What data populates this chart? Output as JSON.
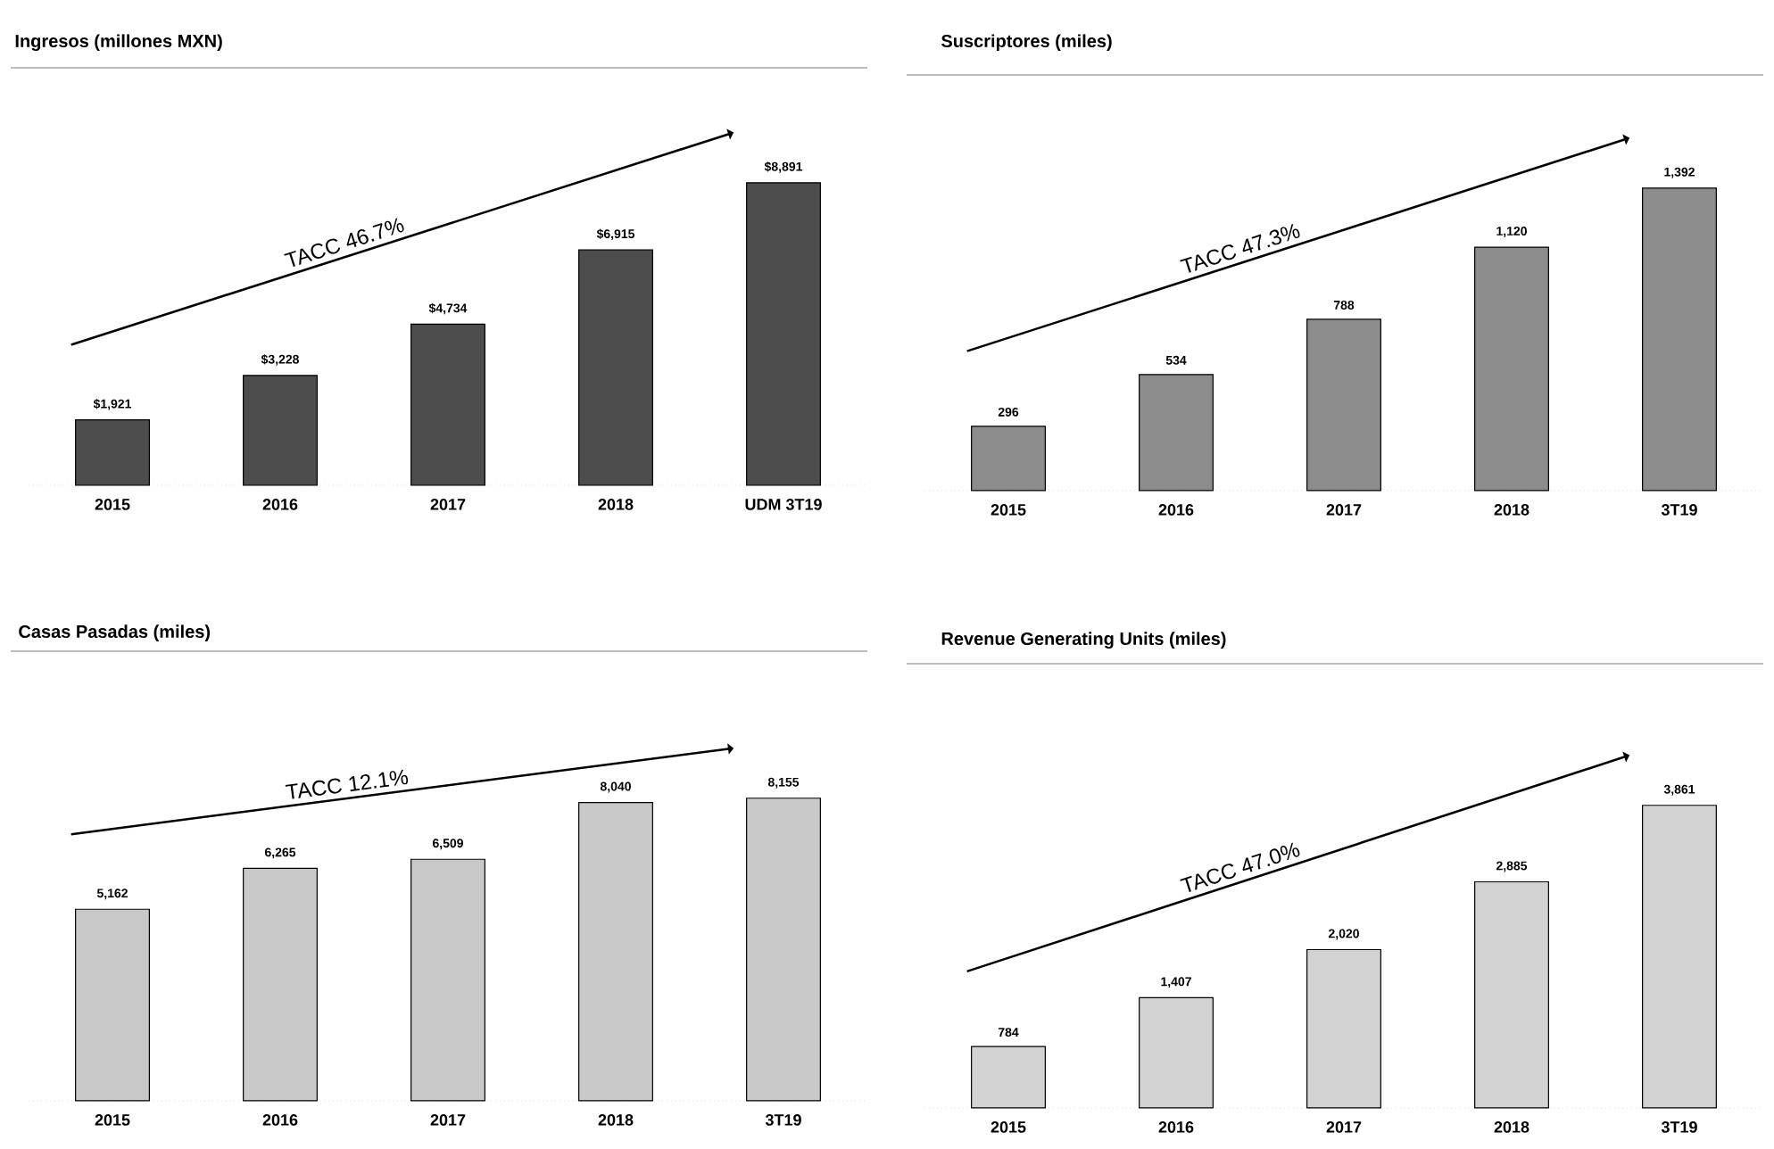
{
  "chart_data": [
    {
      "type": "bar",
      "title": "**Ingresos** (millones MXN)",
      "categories": [
        "2015",
        "2016",
        "2017",
        "2018",
        "UDM 3T19"
      ],
      "values": [
        1921,
        3228,
        4734,
        6915,
        8891
      ],
      "value_labels": [
        "$1,921",
        "$3,228",
        "$4,734",
        "$6,915",
        "$8,891"
      ],
      "color": "#4d4d4d",
      "annotations": [
        "TACC 46.7%"
      ]
    },
    {
      "type": "bar",
      "title": "**Suscriptores** (miles)",
      "categories": [
        "2015",
        "2016",
        "2017",
        "2018",
        "3T19"
      ],
      "values": [
        296,
        534,
        788,
        1120,
        1392
      ],
      "value_labels": [
        "296",
        "534",
        "788",
        "1,120",
        "1,392"
      ],
      "color": "#8c8c8c",
      "annotations": [
        "TACC 47.3%"
      ]
    },
    {
      "type": "bar",
      "title": "**Casas Pasadas** (miles)",
      "categories": [
        "2015",
        "2016",
        "2017",
        "2018",
        "3T19"
      ],
      "values": [
        5162,
        6265,
        6509,
        8040,
        8155
      ],
      "value_labels": [
        "5,162",
        "6,265",
        "6,509",
        "8,040",
        "8,155"
      ],
      "color": "#c8c8c8",
      "annotations": [
        "TACC 12.1%"
      ]
    },
    {
      "type": "bar",
      "title": "**Revenue Generating Units** (miles)",
      "categories": [
        "2015",
        "2016",
        "2017",
        "2018",
        "3T19"
      ],
      "values": [
        784,
        1407,
        2020,
        2885,
        3861
      ],
      "value_labels": [
        "784",
        "1,407",
        "2,020",
        "2,885",
        "3,861"
      ],
      "color": "#d2d2d2",
      "annotations": [
        "TACC 47.0%"
      ]
    }
  ]
}
